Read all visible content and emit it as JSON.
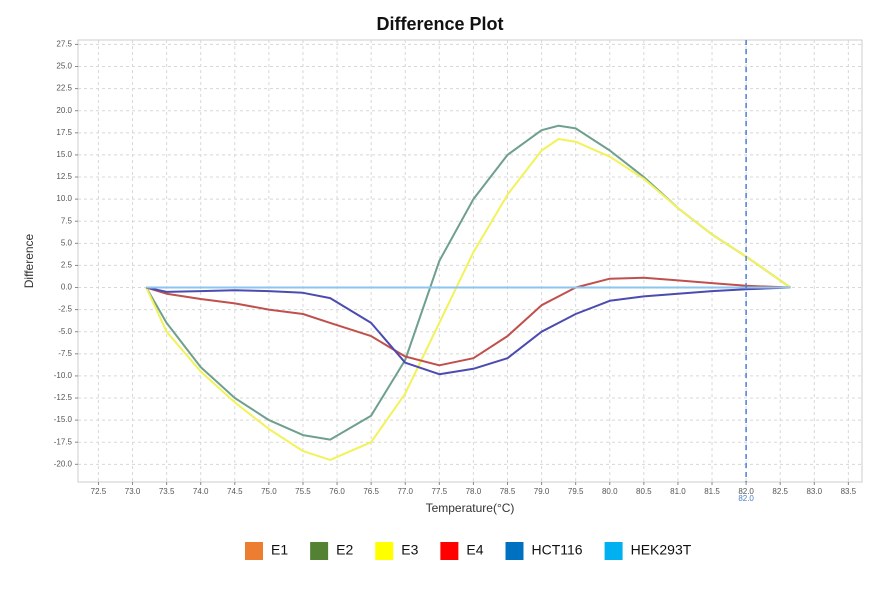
{
  "chart_data": {
    "type": "line",
    "title": "Difference Plot",
    "x_label": "Temperature(°C)",
    "y_label": "Difference",
    "x": [
      73.2,
      73.5,
      74.0,
      74.5,
      75.0,
      75.5,
      75.9,
      76.5,
      77.0,
      77.5,
      78.0,
      78.5,
      79.0,
      79.25,
      79.5,
      80.0,
      80.5,
      81.0,
      81.5,
      82.0,
      82.65
    ],
    "series": [
      {
        "name": "E1",
        "color": "#ed7d31",
        "values": [
          0,
          0,
          0,
          0,
          0,
          0,
          0,
          0,
          0,
          0,
          0,
          0,
          0,
          0,
          0,
          0,
          0,
          0,
          0,
          0,
          0
        ]
      },
      {
        "name": "E2",
        "color": "#548235",
        "line_color": "#6fa08f",
        "values": [
          0,
          -4,
          -9,
          -12.5,
          -15,
          -16.7,
          -17.2,
          -14.5,
          -8.2,
          3,
          10,
          15,
          17.8,
          18.3,
          18,
          15.5,
          12.5,
          9,
          6,
          3.5,
          0
        ]
      },
      {
        "name": "E3",
        "color": "#ffff00",
        "line_color": "#f2f25a",
        "values": [
          0,
          -5,
          -9.5,
          -13,
          -16,
          -18.5,
          -19.5,
          -17.5,
          -12,
          -4,
          4,
          10.5,
          15.5,
          16.8,
          16.5,
          14.8,
          12.3,
          9,
          6,
          3.5,
          0
        ]
      },
      {
        "name": "E4",
        "color": "#ff0000",
        "line_color": "#c0504d",
        "values": [
          0,
          -0.7,
          -1.3,
          -1.8,
          -2.5,
          -3,
          -4,
          -5.5,
          -7.8,
          -8.8,
          -8,
          -5.5,
          -2,
          -1,
          0,
          1,
          1.1,
          0.8,
          0.5,
          0.2,
          0
        ]
      },
      {
        "name": "HCT116",
        "color": "#0070c0",
        "line_color": "#4b4bb0",
        "values": [
          0,
          -0.5,
          -0.4,
          -0.3,
          -0.4,
          -0.6,
          -1.2,
          -4,
          -8.5,
          -9.8,
          -9.2,
          -8,
          -5,
          -4,
          -3,
          -1.5,
          -1,
          -0.7,
          -0.4,
          -0.2,
          0
        ]
      },
      {
        "name": "HEK293T",
        "color": "#00b0f0",
        "line_color": "#8ec5ee",
        "values": [
          0,
          0,
          0,
          0,
          0,
          0,
          0,
          0,
          0,
          0,
          0,
          0,
          0,
          0,
          0,
          0,
          0,
          0,
          0,
          0,
          0
        ]
      }
    ],
    "xlim": [
      72.2,
      83.7
    ],
    "ylim": [
      -22,
      28
    ],
    "xticks": [
      72.5,
      {
        "value": 73,
        "label": "73.0"
      },
      73.5,
      {
        "value": 74,
        "label": "74.0"
      },
      74.5,
      {
        "value": 75,
        "label": "75.0"
      },
      75.5,
      {
        "value": 76,
        "label": "76.0"
      },
      76.5,
      {
        "value": 77,
        "label": "77.0"
      },
      77.5,
      {
        "value": 78,
        "label": "78.0"
      },
      78.5,
      {
        "value": 79,
        "label": "79.0"
      },
      79.5,
      {
        "value": 80,
        "label": "80.0"
      },
      80.5,
      {
        "value": 81,
        "label": "81.0"
      },
      81.5,
      {
        "value": 82,
        "label": "82.0"
      },
      82.5,
      {
        "value": 83,
        "label": "83.0"
      },
      83.5
    ],
    "yticks": [
      27.5,
      {
        "value": 25,
        "label": "25.0"
      },
      22.5,
      {
        "value": 20,
        "label": "20.0"
      },
      17.5,
      {
        "value": 15,
        "label": "15.0"
      },
      12.5,
      {
        "value": 10,
        "label": "10.0"
      },
      7.5,
      {
        "value": 5,
        "label": "5.0"
      },
      2.5,
      {
        "value": 0,
        "label": "0.0"
      },
      -2.5,
      {
        "value": -5,
        "label": "-5.0"
      },
      -7.5,
      {
        "value": -10,
        "label": "-10.0"
      },
      -12.5,
      {
        "value": -15,
        "label": "-15.0"
      },
      -17.5,
      {
        "value": -20,
        "label": "-20.0"
      }
    ],
    "grid": true,
    "marker_line": {
      "value": 82,
      "label": "82.0",
      "color": "#4a7fd0"
    },
    "legend": "bottom"
  }
}
